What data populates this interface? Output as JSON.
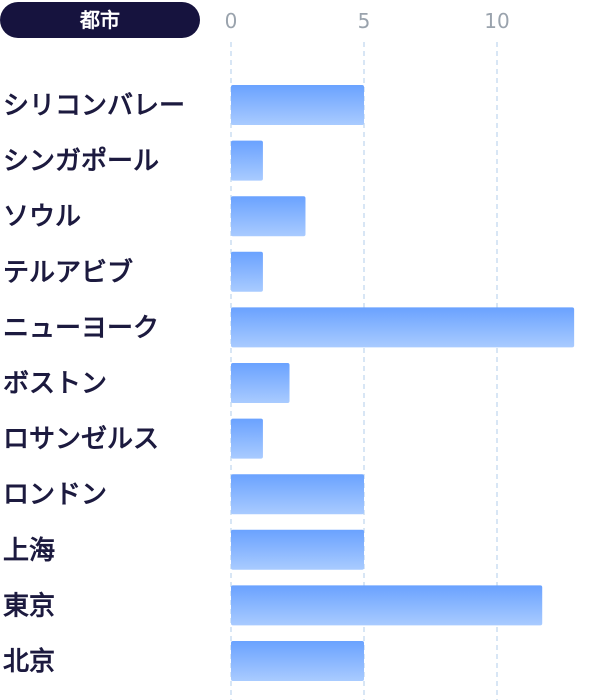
{
  "chart_data": {
    "type": "bar",
    "orientation": "horizontal",
    "header_label": "都市",
    "categories": [
      "シリコンバレー",
      "シンガポール",
      "ソウル",
      "テルアビブ",
      "ニューヨーク",
      "ボストン",
      "ロサンゼルス",
      "ロンドン",
      "上海",
      "東京",
      "北京"
    ],
    "values": [
      5,
      1.2,
      2.8,
      1.2,
      12.9,
      2.2,
      1.2,
      5,
      5,
      11.7,
      5
    ],
    "xlim": [
      0,
      12.9
    ],
    "xticks": [
      "0",
      "5",
      "10"
    ],
    "grid": true,
    "colors": {
      "bar_top": "#6aa2ff",
      "bar_bottom": "#a9cbff",
      "header_bg": "#16133e",
      "label": "#1c1a3f",
      "tick": "#9aa3ad",
      "grid": "#bdd6ee"
    }
  }
}
